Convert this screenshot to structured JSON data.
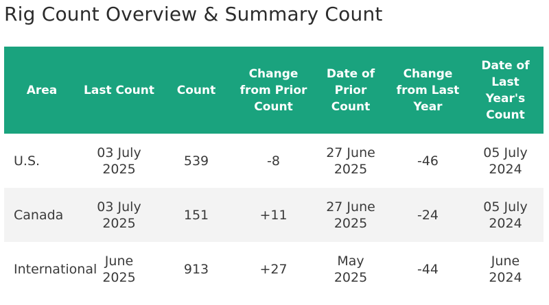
{
  "title": "Rig Count Overview & Summary Count",
  "colors": {
    "header_bg": "#1aa37e",
    "negative": "#c62828",
    "positive": "#2e8b2e"
  },
  "table": {
    "headers": [
      "Area",
      "Last Count",
      "Count",
      "Change from Prior Count",
      "Date of Prior Count",
      "Change from Last Year",
      "Date of Last Year's Count"
    ],
    "rows": [
      {
        "area": "U.S.",
        "last_count": "03 July 2025",
        "count": "539",
        "change_prior": "-8",
        "date_prior": "27 June 2025",
        "change_last_year": "-46",
        "date_last_year": "05 July 2024"
      },
      {
        "area": "Canada",
        "last_count": "03 July 2025",
        "count": "151",
        "change_prior": "+11",
        "date_prior": "27 June 2025",
        "change_last_year": "-24",
        "date_last_year": "05 July 2024"
      },
      {
        "area": "International",
        "last_count": "June 2025",
        "count": "913",
        "change_prior": "+27",
        "date_prior": "May 2025",
        "change_last_year": "-44",
        "date_last_year": "June 2024"
      }
    ]
  }
}
